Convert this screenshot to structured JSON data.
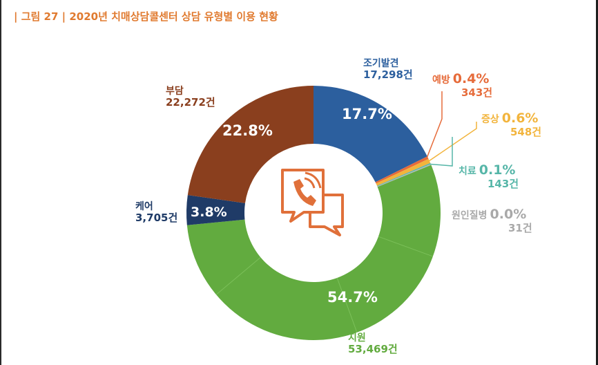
{
  "title": {
    "prefix": "| 그림 27 |",
    "text": "2020년 치매상담콜센터 상담 유형별 이용 현황"
  },
  "icon": {
    "name": "phone-consultation-icon",
    "color": "#e0703a"
  },
  "colors": {
    "조기발견": "#2c5f9e",
    "예방": "#e66b3a",
    "증상": "#f2b43c",
    "치료": "#56b6a8",
    "원인질병": "#b8b8b8",
    "지원": "#62ab3f",
    "케어": "#1f3b67",
    "부담": "#8a3f1e"
  },
  "chart_data": {
    "type": "pie",
    "donut": true,
    "title": "2020년 치매상담콜센터 상담 유형별 이용 현황",
    "unit": "건",
    "slices": [
      {
        "name": "조기발견",
        "count": 17298,
        "count_label": "17,298건",
        "pct": 17.7,
        "pct_label": "17.7%",
        "color": "#2c5f9e"
      },
      {
        "name": "예방",
        "count": 343,
        "count_label": "343건",
        "pct": 0.4,
        "pct_label": "0.4%",
        "color": "#e66b3a"
      },
      {
        "name": "증상",
        "count": 548,
        "count_label": "548건",
        "pct": 0.6,
        "pct_label": "0.6%",
        "color": "#f2b43c"
      },
      {
        "name": "치료",
        "count": 143,
        "count_label": "143건",
        "pct": 0.1,
        "pct_label": "0.1%",
        "color": "#56b6a8"
      },
      {
        "name": "원인질병",
        "count": 31,
        "count_label": "31건",
        "pct": 0.0,
        "pct_label": "0.0%",
        "color": "#b8b8b8"
      },
      {
        "name": "지원",
        "count": 53469,
        "count_label": "53,469건",
        "pct": 54.7,
        "pct_label": "54.7%",
        "color": "#62ab3f"
      },
      {
        "name": "케어",
        "count": 3705,
        "count_label": "3,705건",
        "pct": 3.8,
        "pct_label": "3.8%",
        "color": "#1f3b67"
      },
      {
        "name": "부담",
        "count": 22272,
        "count_label": "22,272건",
        "pct": 22.8,
        "pct_label": "22.8%",
        "color": "#8a3f1e"
      }
    ]
  }
}
